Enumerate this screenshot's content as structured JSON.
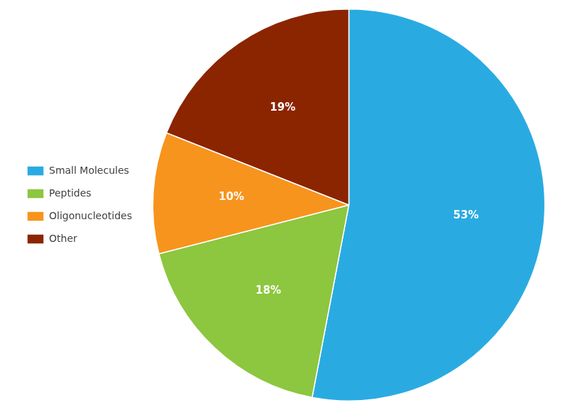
{
  "chart_data": {
    "type": "pie",
    "categories": [
      "Small Molecules",
      "Peptides",
      "Oligonucleotides",
      "Other"
    ],
    "values": [
      53,
      18,
      10,
      19
    ],
    "value_labels": [
      "53%",
      "18%",
      "10%",
      "19%"
    ],
    "colors": [
      "#29ABE2",
      "#8DC63F",
      "#F7941D",
      "#8B2500"
    ],
    "data_labels": true,
    "legend": "left"
  }
}
